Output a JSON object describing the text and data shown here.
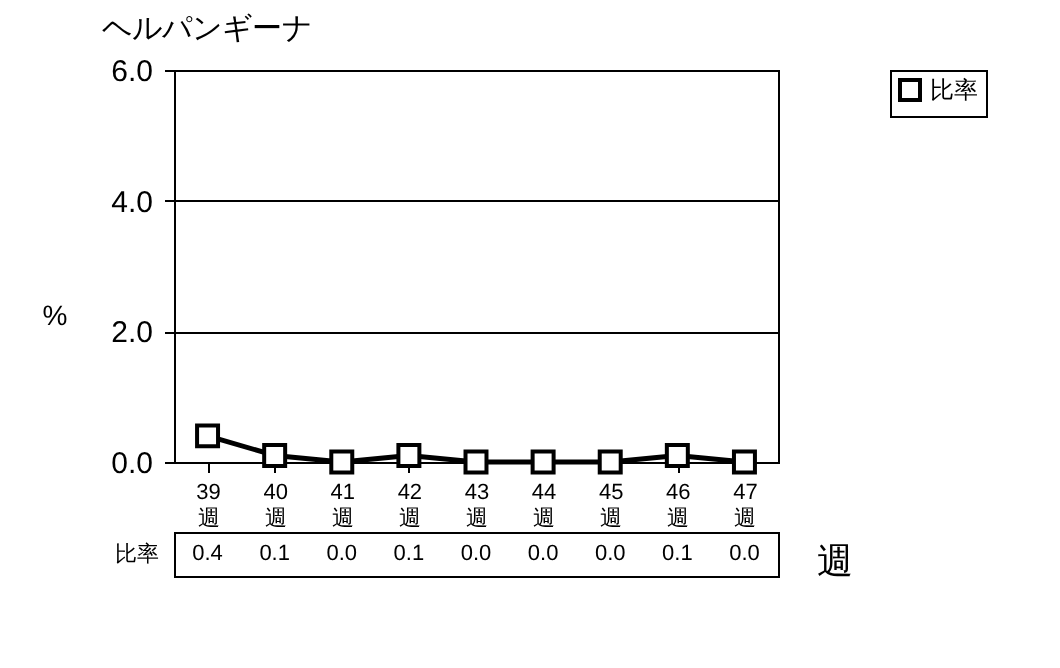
{
  "chart_data": {
    "type": "line",
    "title": "ヘルパンギーナ",
    "xlabel": "週",
    "ylabel": "%",
    "categories": [
      "39週",
      "40週",
      "41週",
      "42週",
      "43週",
      "44週",
      "45週",
      "46週",
      "47週"
    ],
    "series": [
      {
        "name": "比率",
        "color": "#000000",
        "values": [
          0.4,
          0.1,
          0.0,
          0.1,
          0.0,
          0.0,
          0.0,
          0.1,
          0.0
        ],
        "value_labels": [
          "0.4",
          "0.1",
          "0.0",
          "0.1",
          "0.0",
          "0.0",
          "0.0",
          "0.1",
          "0.0"
        ]
      }
    ],
    "ylim": [
      0,
      6
    ],
    "yticks": [
      {
        "value": 0,
        "label": "0.0"
      },
      {
        "value": 2,
        "label": "2.0"
      },
      {
        "value": 4,
        "label": "4.0"
      },
      {
        "value": 6,
        "label": "6.0"
      }
    ],
    "grid": "y",
    "legend": "right",
    "marker": "square",
    "line_style": "solid"
  }
}
